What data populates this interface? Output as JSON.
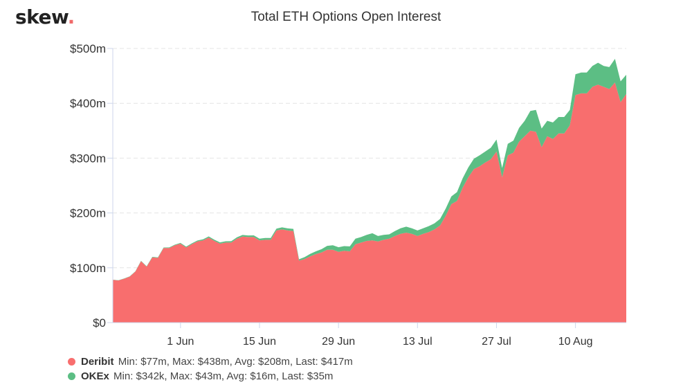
{
  "logo": {
    "text": "skew",
    "dot": "."
  },
  "chart_data": {
    "type": "area",
    "stacked": true,
    "title": "Total ETH Options Open Interest",
    "xlabel": "",
    "ylabel": "",
    "x_start": "2020-05-20",
    "x_ticks": [
      {
        "label": "1 Jun",
        "date": "2020-06-01"
      },
      {
        "label": "15 Jun",
        "date": "2020-06-15"
      },
      {
        "label": "29 Jun",
        "date": "2020-06-29"
      },
      {
        "label": "13 Jul",
        "date": "2020-07-13"
      },
      {
        "label": "27 Jul",
        "date": "2020-07-27"
      },
      {
        "label": "10 Aug",
        "date": "2020-08-10"
      }
    ],
    "y_ticks": [
      "$0",
      "$100m",
      "$200m",
      "$300m",
      "$400m",
      "$500m"
    ],
    "ylim": [
      0,
      500
    ],
    "grid": true,
    "legend_position": "bottom-left",
    "series": [
      {
        "name": "Deribit",
        "color": "#f86e6e",
        "stats": "Min: $77m, Max: $438m, Avg: $208m, Last: $417m",
        "values": [
          78,
          77,
          80,
          84,
          93,
          112,
          102,
          119,
          118,
          136,
          136,
          141,
          144,
          137,
          143,
          148,
          150,
          155,
          149,
          144,
          146,
          146,
          153,
          157,
          156,
          156,
          150,
          151,
          151,
          168,
          170,
          168,
          167,
          113,
          116,
          121,
          125,
          128,
          133,
          133,
          129,
          131,
          130,
          143,
          146,
          149,
          150,
          148,
          151,
          153,
          158,
          162,
          164,
          162,
          158,
          162,
          165,
          170,
          177,
          195,
          216,
          222,
          246,
          265,
          280,
          285,
          292,
          298,
          312,
          265,
          305,
          310,
          330,
          340,
          350,
          348,
          320,
          340,
          335,
          345,
          345,
          360,
          415,
          418,
          418,
          430,
          434,
          430,
          426,
          438,
          402,
          417
        ]
      },
      {
        "name": "OKEx",
        "color": "#5cbe84",
        "stats": "Min: $342k, Max: $43m, Avg: $16m, Last: $35m",
        "values": [
          0.3,
          0.3,
          0.4,
          0.5,
          0.6,
          0.7,
          0.8,
          0.9,
          1,
          1,
          1.1,
          1.2,
          1.3,
          1.5,
          1.6,
          1.8,
          2,
          2.2,
          2.2,
          2.3,
          2.4,
          2.5,
          2.6,
          2.8,
          3,
          3.1,
          3.2,
          3.3,
          3.4,
          3.5,
          3.7,
          3.8,
          3.9,
          2.5,
          3.5,
          4.5,
          5,
          6,
          7,
          8,
          8.5,
          8.5,
          9,
          10,
          10,
          11,
          13,
          10,
          9,
          8,
          9,
          10,
          11,
          10,
          10,
          10,
          11,
          11,
          12,
          13,
          14,
          16,
          17,
          18,
          19,
          20,
          20,
          21,
          22,
          17,
          21,
          22,
          25,
          28,
          36,
          40,
          34,
          28,
          30,
          30,
          30,
          28,
          38,
          38,
          38,
          38,
          40,
          38,
          40,
          43,
          38,
          35
        ]
      }
    ]
  }
}
